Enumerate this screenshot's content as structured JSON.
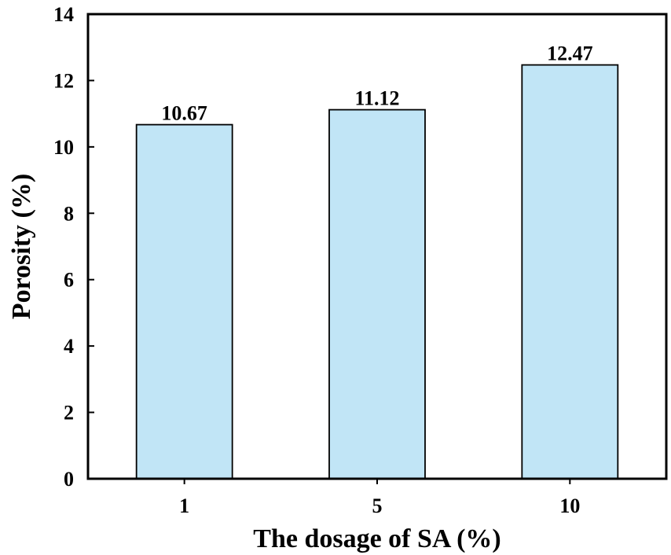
{
  "chart_data": {
    "type": "bar",
    "categories": [
      "1",
      "5",
      "10"
    ],
    "values": [
      10.67,
      11.12,
      12.47
    ],
    "data_labels": [
      "10.67",
      "11.12",
      "12.47"
    ],
    "xlabel": "The dosage of SA (%)",
    "ylabel": "Porosity (%)",
    "ylim": [
      0,
      14
    ],
    "yticks": [
      0,
      2,
      4,
      6,
      8,
      10,
      12,
      14
    ],
    "ytick_labels": [
      "0",
      "2",
      "4",
      "6",
      "8",
      "10",
      "12",
      "14"
    ],
    "grid": false,
    "bar_color": "#c1e5f6",
    "bar_edge_color": "#000000"
  }
}
